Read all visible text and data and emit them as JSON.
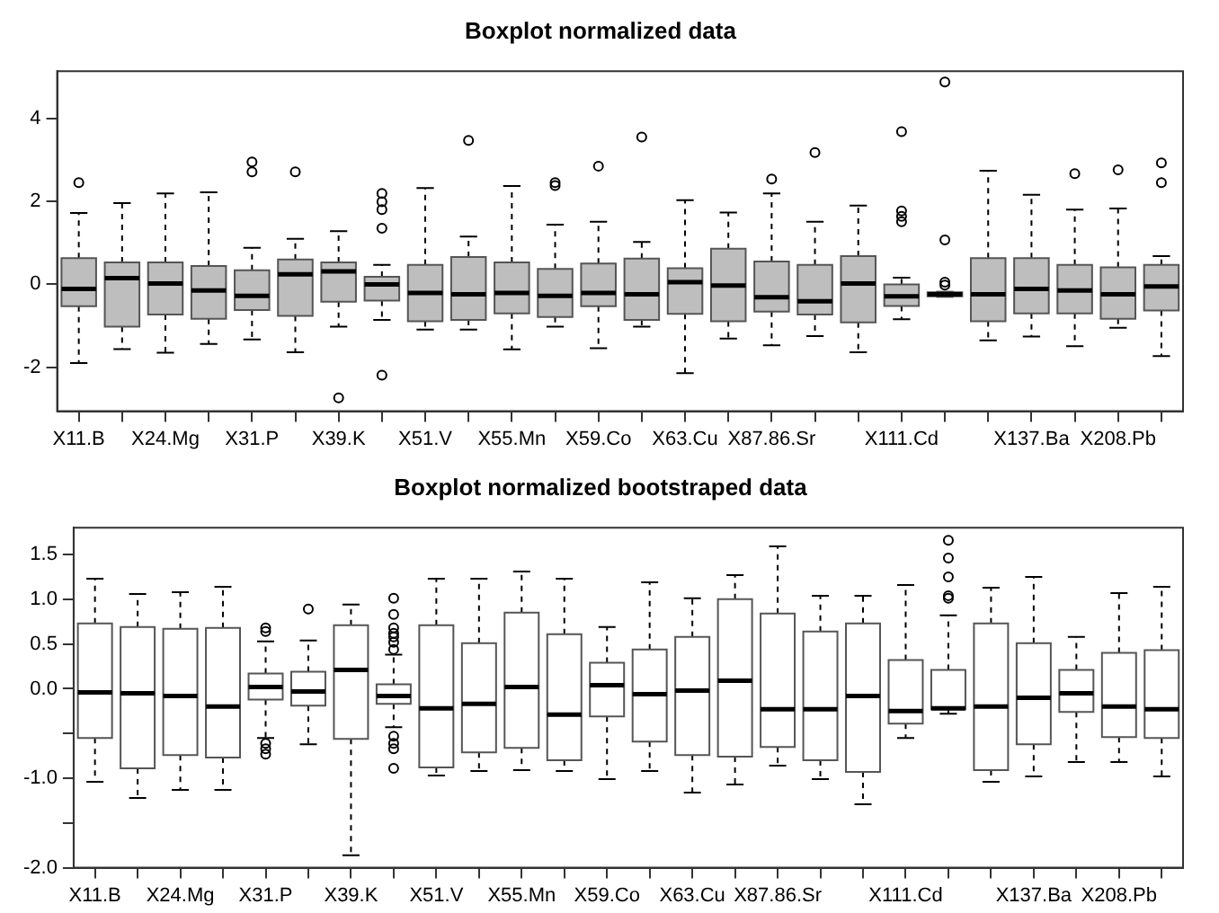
{
  "chart_data": [
    {
      "type": "box",
      "title": "Boxplot normalized data",
      "categories": [
        "X11.B",
        null,
        "X24.Mg",
        null,
        "X31.P",
        null,
        "X39.K",
        null,
        "X51.V",
        null,
        "X55.Mn",
        null,
        "X59.Co",
        null,
        "X63.Cu",
        null,
        "X87.86.Sr",
        null,
        null,
        "X111.Cd",
        null,
        null,
        "X137.Ba",
        null,
        "X208.Pb",
        null
      ],
      "ylim": [
        -3.06,
        5.14
      ],
      "yticks": [
        -2,
        0,
        2,
        4
      ],
      "series": [
        {
          "color": "#bebebe",
          "boxes": [
            {
              "low": -1.9,
              "q1": -0.53,
              "median": -0.11,
              "q3": 0.63,
              "high": 1.72,
              "outliers": [
                2.45
              ]
            },
            {
              "low": -1.56,
              "q1": -1.02,
              "median": 0.15,
              "q3": 0.53,
              "high": 1.96
            },
            {
              "low": -1.65,
              "q1": -0.73,
              "median": 0.02,
              "q3": 0.53,
              "high": 2.19
            },
            {
              "low": -1.44,
              "q1": -0.83,
              "median": -0.15,
              "q3": 0.44,
              "high": 2.22
            },
            {
              "low": -1.33,
              "q1": -0.62,
              "median": -0.28,
              "q3": 0.34,
              "high": 0.88,
              "outliers": [
                2.95,
                2.71
              ]
            },
            {
              "low": -1.64,
              "q1": -0.76,
              "median": 0.24,
              "q3": 0.6,
              "high": 1.1,
              "outliers": [
                2.71
              ]
            },
            {
              "low": -1.02,
              "q1": -0.42,
              "median": 0.31,
              "q3": 0.53,
              "high": 1.28,
              "outliers": [
                -2.74
              ]
            },
            {
              "low": -0.86,
              "q1": -0.39,
              "median": 0.0,
              "q3": 0.18,
              "high": 0.47,
              "outliers": [
                2.19,
                1.99,
                1.8,
                1.35,
                -2.19
              ]
            },
            {
              "low": -1.09,
              "q1": -0.89,
              "median": -0.21,
              "q3": 0.47,
              "high": 2.32
            },
            {
              "low": -1.09,
              "q1": -0.86,
              "median": -0.24,
              "q3": 0.66,
              "high": 1.15,
              "outliers": [
                3.47
              ]
            },
            {
              "low": -1.57,
              "q1": -0.7,
              "median": -0.21,
              "q3": 0.53,
              "high": 2.37
            },
            {
              "low": -1.02,
              "q1": -0.79,
              "median": -0.28,
              "q3": 0.37,
              "high": 1.44,
              "outliers": [
                2.45,
                2.38
              ]
            },
            {
              "low": -1.54,
              "q1": -0.53,
              "median": -0.21,
              "q3": 0.5,
              "high": 1.51,
              "outliers": [
                2.85
              ]
            },
            {
              "low": -1.02,
              "q1": -0.86,
              "median": -0.24,
              "q3": 0.62,
              "high": 1.02,
              "outliers": [
                3.55
              ]
            },
            {
              "low": -2.14,
              "q1": -0.71,
              "median": 0.05,
              "q3": 0.39,
              "high": 2.03
            },
            {
              "low": -1.31,
              "q1": -0.89,
              "median": -0.03,
              "q3": 0.86,
              "high": 1.73
            },
            {
              "low": -1.47,
              "q1": -0.66,
              "median": -0.31,
              "q3": 0.55,
              "high": 2.19,
              "outliers": [
                2.54
              ]
            },
            {
              "low": -1.25,
              "q1": -0.73,
              "median": -0.41,
              "q3": 0.47,
              "high": 1.51,
              "outliers": [
                3.18
              ]
            },
            {
              "low": -1.64,
              "q1": -0.92,
              "median": 0.02,
              "q3": 0.68,
              "high": 1.9
            },
            {
              "low": -0.84,
              "q1": -0.52,
              "median": -0.29,
              "q3": 0.0,
              "high": 0.16,
              "outliers": [
                3.68,
                1.77,
                1.64,
                1.51
              ]
            },
            {
              "low": -0.3,
              "q1": -0.29,
              "median": -0.24,
              "q3": -0.19,
              "high": -0.18,
              "outliers": [
                4.88,
                1.07,
                0.05,
                -0.02
              ]
            },
            {
              "low": -1.35,
              "q1": -0.89,
              "median": -0.24,
              "q3": 0.63,
              "high": 2.74
            },
            {
              "low": -1.26,
              "q1": -0.7,
              "median": -0.11,
              "q3": 0.63,
              "high": 2.16
            },
            {
              "low": -1.49,
              "q1": -0.7,
              "median": -0.15,
              "q3": 0.47,
              "high": 1.8,
              "outliers": [
                2.67
              ]
            },
            {
              "low": -1.05,
              "q1": -0.83,
              "median": -0.24,
              "q3": 0.41,
              "high": 1.83,
              "outliers": [
                2.76
              ]
            },
            {
              "low": -1.73,
              "q1": -0.63,
              "median": -0.05,
              "q3": 0.47,
              "high": 0.68,
              "outliers": [
                2.93,
                2.45
              ]
            }
          ]
        }
      ]
    },
    {
      "type": "box",
      "title": "Boxplot normalized bootstraped data",
      "categories": [
        "X11.B",
        null,
        "X24.Mg",
        null,
        "X31.P",
        null,
        "X39.K",
        null,
        "X51.V",
        null,
        "X55.Mn",
        null,
        "X59.Co",
        null,
        "X63.Cu",
        null,
        "X87.86.Sr",
        null,
        null,
        "X111.Cd",
        null,
        null,
        "X137.Ba",
        null,
        "X208.Pb",
        null
      ],
      "ylim": [
        -2.0,
        1.8
      ],
      "yticks": [
        {
          "value": -2,
          "label": "-2.0"
        },
        {
          "value": -1.5,
          "label": null
        },
        {
          "value": -1,
          "label": "-1.0"
        },
        {
          "value": -0.5,
          "label": null
        },
        {
          "value": 0,
          "label": "0.0"
        },
        {
          "value": 0.5,
          "label": "0.5"
        },
        {
          "value": 1,
          "label": "1.0"
        },
        {
          "value": 1.5,
          "label": "1.5"
        }
      ],
      "series": [
        {
          "color": "#ffffff",
          "boxes": [
            {
              "low": -1.04,
              "q1": -0.55,
              "median": -0.04,
              "q3": 0.73,
              "high": 1.23
            },
            {
              "low": -1.22,
              "q1": -0.89,
              "median": -0.05,
              "q3": 0.69,
              "high": 1.06
            },
            {
              "low": -1.13,
              "q1": -0.74,
              "median": -0.08,
              "q3": 0.67,
              "high": 1.08
            },
            {
              "low": -1.13,
              "q1": -0.77,
              "median": -0.2,
              "q3": 0.68,
              "high": 1.14
            },
            {
              "low": -0.55,
              "q1": -0.12,
              "median": 0.02,
              "q3": 0.17,
              "high": 0.53,
              "outliers": [
                0.68,
                0.64,
                -0.61,
                -0.67,
                -0.73
              ]
            },
            {
              "low": -0.62,
              "q1": -0.19,
              "median": -0.03,
              "q3": 0.19,
              "high": 0.54,
              "outliers": [
                0.89
              ]
            },
            {
              "low": -1.86,
              "q1": -0.56,
              "median": 0.21,
              "q3": 0.71,
              "high": 0.94
            },
            {
              "low": -0.43,
              "q1": -0.17,
              "median": -0.08,
              "q3": 0.05,
              "high": 0.38,
              "outliers": [
                1.01,
                0.83,
                0.68,
                0.62,
                0.58,
                0.52,
                0.44,
                -0.53,
                -0.61,
                -0.67,
                -0.89
              ]
            },
            {
              "low": -0.97,
              "q1": -0.88,
              "median": -0.22,
              "q3": 0.71,
              "high": 1.23
            },
            {
              "low": -0.92,
              "q1": -0.71,
              "median": -0.17,
              "q3": 0.51,
              "high": 1.23
            },
            {
              "low": -0.91,
              "q1": -0.66,
              "median": 0.02,
              "q3": 0.85,
              "high": 1.31
            },
            {
              "low": -0.92,
              "q1": -0.8,
              "median": -0.29,
              "q3": 0.61,
              "high": 1.23
            },
            {
              "low": -1.01,
              "q1": -0.31,
              "median": 0.04,
              "q3": 0.29,
              "high": 0.69
            },
            {
              "low": -0.92,
              "q1": -0.59,
              "median": -0.06,
              "q3": 0.44,
              "high": 1.19
            },
            {
              "low": -1.16,
              "q1": -0.74,
              "median": -0.02,
              "q3": 0.58,
              "high": 1.01
            },
            {
              "low": -1.07,
              "q1": -0.76,
              "median": 0.09,
              "q3": 1.0,
              "high": 1.27
            },
            {
              "low": -0.86,
              "q1": -0.65,
              "median": -0.23,
              "q3": 0.84,
              "high": 1.59
            },
            {
              "low": -1.01,
              "q1": -0.8,
              "median": -0.23,
              "q3": 0.64,
              "high": 1.04
            },
            {
              "low": -1.29,
              "q1": -0.93,
              "median": -0.08,
              "q3": 0.73,
              "high": 1.04
            },
            {
              "low": -0.55,
              "q1": -0.39,
              "median": -0.25,
              "q3": 0.32,
              "high": 1.16
            },
            {
              "low": -0.28,
              "q1": -0.23,
              "median": -0.22,
              "q3": 0.21,
              "high": 0.82,
              "outliers": [
                1.66,
                1.46,
                1.25,
                1.04,
                1.01
              ]
            },
            {
              "low": -1.04,
              "q1": -0.91,
              "median": -0.2,
              "q3": 0.73,
              "high": 1.13
            },
            {
              "low": -0.98,
              "q1": -0.62,
              "median": -0.1,
              "q3": 0.51,
              "high": 1.25
            },
            {
              "low": -0.82,
              "q1": -0.26,
              "median": -0.05,
              "q3": 0.21,
              "high": 0.58
            },
            {
              "low": -0.82,
              "q1": -0.54,
              "median": -0.2,
              "q3": 0.4,
              "high": 1.07
            },
            {
              "low": -0.98,
              "q1": -0.55,
              "median": -0.23,
              "q3": 0.43,
              "high": 1.14
            }
          ]
        }
      ]
    }
  ]
}
